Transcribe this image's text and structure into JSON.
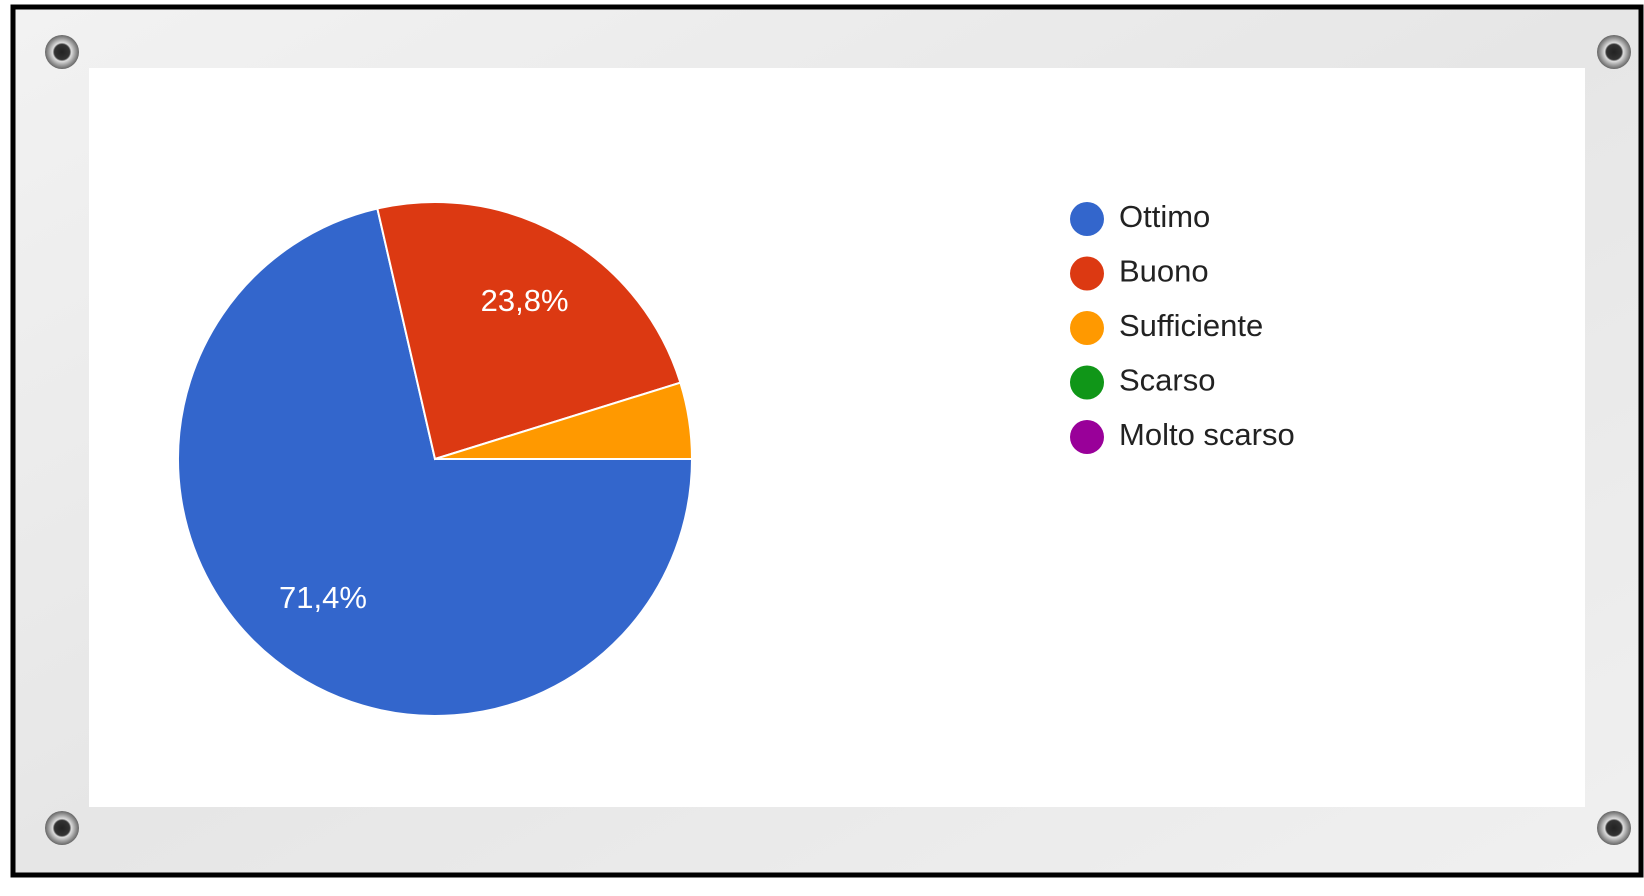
{
  "chart_data": {
    "type": "pie",
    "categories": [
      "Ottimo",
      "Buono",
      "Sufficiente",
      "Scarso",
      "Molto scarso"
    ],
    "values": [
      71.4,
      23.8,
      4.8,
      0,
      0
    ],
    "value_labels": [
      "71,4%",
      "23,8%",
      null,
      null,
      null
    ],
    "colors": [
      "#3366cc",
      "#dc3912",
      "#ff9900",
      "#109618",
      "#990099"
    ],
    "legend": "right"
  }
}
